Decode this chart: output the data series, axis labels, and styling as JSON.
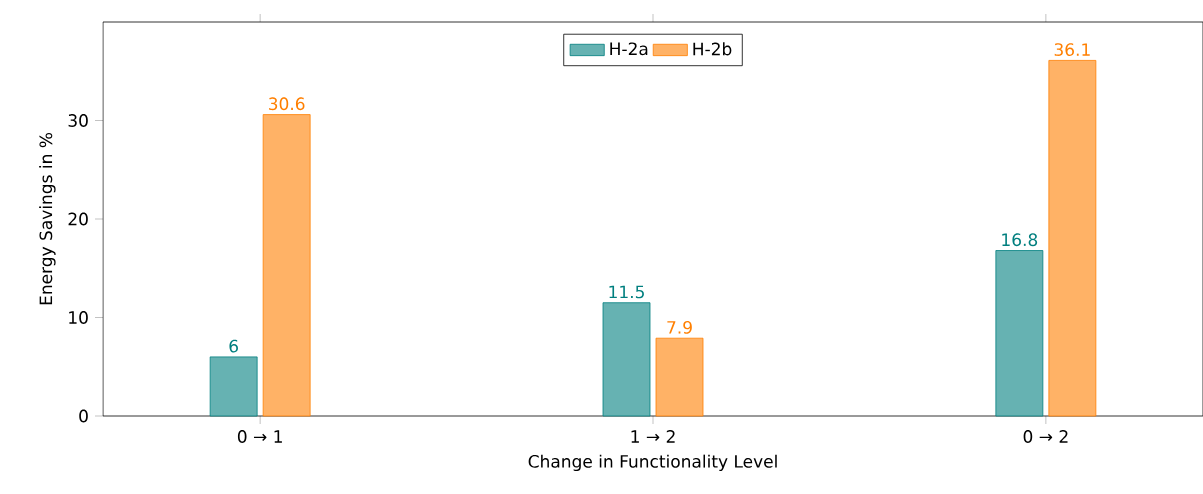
{
  "chart_data": {
    "type": "bar",
    "xlabel": "Change in Functionality Level",
    "ylabel": "Energy Savings in %",
    "categories": [
      "0 → 1",
      "1 → 2",
      "0 → 2"
    ],
    "series": [
      {
        "name": "H-2a",
        "color": "#66b2b2",
        "values": [
          6,
          11.5,
          16.8
        ]
      },
      {
        "name": "H-2b",
        "color": "#ffb266",
        "values": [
          30.6,
          7.9,
          36.1
        ]
      }
    ],
    "ylim": [
      0,
      40
    ],
    "yticks": [
      0,
      10,
      20,
      30
    ],
    "grid": false,
    "legend": "top",
    "data_labels": true
  }
}
